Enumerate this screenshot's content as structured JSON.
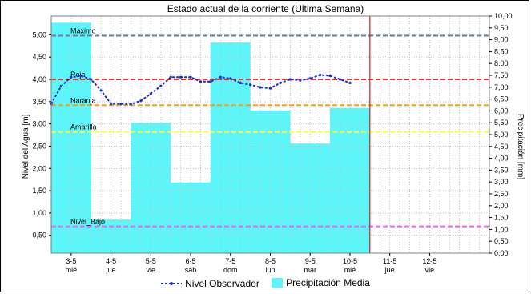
{
  "chart_data": {
    "type": "bar+line",
    "title": "Estado actual de la corriente (Ultima Semana)",
    "ylabel_left": "Nivel del Agua [m]",
    "ylabel_right": "Precipitación [mm]",
    "ylim_left": [
      0.1,
      5.42
    ],
    "ylim_right": [
      0.0,
      10.0
    ],
    "yticks_left": [
      "5,00",
      "4,50",
      "4,00",
      "3,50",
      "3,00",
      "2,50",
      "2,00",
      "1,50",
      "1,00",
      "0,50"
    ],
    "yticks_left_values": [
      5.0,
      4.5,
      4.0,
      3.5,
      3.0,
      2.5,
      2.0,
      1.5,
      1.0,
      0.5
    ],
    "yticks_right": [
      "10,00",
      "9,50",
      "9,00",
      "8,50",
      "8,00",
      "7,50",
      "7,00",
      "6,50",
      "6,00",
      "5,50",
      "5,00",
      "4,50",
      "4,00",
      "3,50",
      "3,00",
      "2,50",
      "2,00",
      "1,50",
      "1,00",
      "0,50",
      "0,00"
    ],
    "yticks_right_values": [
      10,
      9.5,
      9,
      8.5,
      8,
      7.5,
      7,
      6.5,
      6,
      5.5,
      5,
      4.5,
      4,
      3.5,
      3,
      2.5,
      2,
      1.5,
      1,
      0.5,
      0
    ],
    "x_ticks": [
      {
        "date": "3-5",
        "day": "mié"
      },
      {
        "date": "4-5",
        "day": "jue"
      },
      {
        "date": "5-5",
        "day": "vie"
      },
      {
        "date": "6-5",
        "day": "sáb"
      },
      {
        "date": "7-5",
        "day": "dom"
      },
      {
        "date": "8-5",
        "day": "lun"
      },
      {
        "date": "9-5",
        "day": "mar"
      },
      {
        "date": "10-5",
        "day": "mié"
      },
      {
        "date": "11-5",
        "day": "jue"
      },
      {
        "date": "12-5",
        "day": "vie"
      }
    ],
    "thresholds": [
      {
        "label": "Maximo",
        "value": 4.98,
        "color": "#6a7fa8"
      },
      {
        "label": "Roja",
        "value": 4.0,
        "color": "#e83030"
      },
      {
        "label": "Naranja",
        "value": 3.42,
        "color": "#f0a020"
      },
      {
        "label": "Amarilla",
        "value": 2.82,
        "color": "#ffff40"
      },
      {
        "label": "Nivel_Bajo",
        "value": 0.7,
        "color": "#ee66ee"
      }
    ],
    "series": [
      {
        "name": "Nivel Observador",
        "type": "line",
        "axis": "left",
        "color": "#1c2fc8",
        "x": [
          "2-5 12:00",
          "2-5 18:00",
          "3-5 00:00",
          "3-5 06:00",
          "3-5 12:00",
          "3-5 18:00",
          "4-5 00:00",
          "4-5 06:00",
          "4-5 12:00",
          "4-5 18:00",
          "5-5 00:00",
          "5-5 06:00",
          "5-5 12:00",
          "5-5 18:00",
          "6-5 00:00",
          "6-5 06:00",
          "6-5 12:00",
          "6-5 18:00",
          "7-5 00:00",
          "7-5 06:00",
          "7-5 12:00",
          "7-5 18:00",
          "8-5 00:00",
          "8-5 06:00",
          "8-5 12:00",
          "8-5 18:00",
          "9-5 00:00",
          "9-5 06:00",
          "9-5 12:00",
          "9-5 18:00",
          "10-5 00:00"
        ],
        "values": [
          3.45,
          3.85,
          4.05,
          4.08,
          4.0,
          3.75,
          3.45,
          3.45,
          3.44,
          3.52,
          3.68,
          3.85,
          4.05,
          4.05,
          4.05,
          3.95,
          3.95,
          4.05,
          4.02,
          3.92,
          3.88,
          3.82,
          3.8,
          3.92,
          4.0,
          3.98,
          4.02,
          4.1,
          4.08,
          4.0,
          3.92
        ]
      },
      {
        "name": "Precipitación Media",
        "type": "bar",
        "axis": "right",
        "color": "#5cf6fa",
        "bins": [
          {
            "start": "2-5 12:00",
            "end": "3-5 12:00",
            "value": 9.72
          },
          {
            "start": "3-5 12:00",
            "end": "4-5 12:00",
            "value": 1.41
          },
          {
            "start": "4-5 12:00",
            "end": "5-5 12:00",
            "value": 5.5
          },
          {
            "start": "5-5 12:00",
            "end": "6-5 12:00",
            "value": 2.98
          },
          {
            "start": "6-5 12:00",
            "end": "7-5 12:00",
            "value": 8.88
          },
          {
            "start": "7-5 12:00",
            "end": "8-5 12:00",
            "value": 6.02
          },
          {
            "start": "8-5 12:00",
            "end": "9-5 12:00",
            "value": 4.62
          },
          {
            "start": "9-5 12:00",
            "end": "10-5 12:00",
            "value": 6.12
          }
        ]
      }
    ],
    "now_marker": {
      "at": "10-5 12:00",
      "color": "#cc2020"
    },
    "grid": true,
    "legend": {
      "position": "bottom",
      "items": [
        "Nivel Observador",
        "Precipitación Media"
      ]
    },
    "colors": {
      "background": "#ffffff",
      "plot_background": "#ffffff",
      "grid": "#c0c0c0"
    }
  }
}
